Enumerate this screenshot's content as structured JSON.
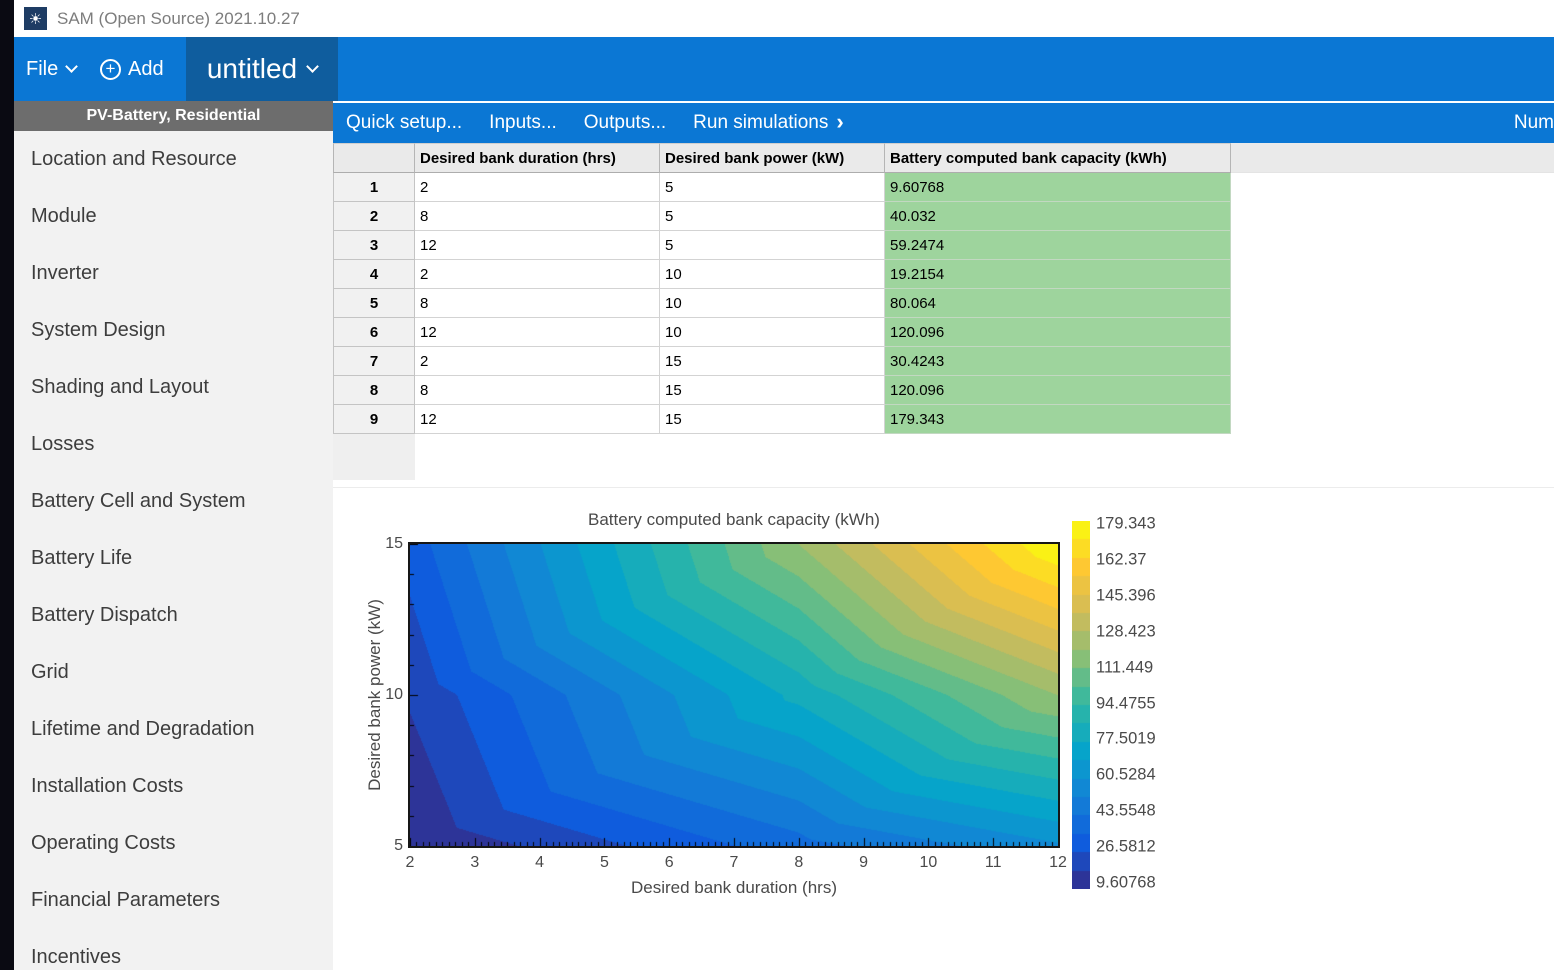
{
  "window": {
    "title": "SAM (Open Source) 2021.10.27",
    "app_icon": "sun-icon"
  },
  "menubar": {
    "file_label": "File",
    "add_label": "Add",
    "tab_label": "untitled"
  },
  "sidebar": {
    "header": "PV-Battery, Residential",
    "items": [
      "Location and Resource",
      "Module",
      "Inverter",
      "System Design",
      "Shading and Layout",
      "Losses",
      "Battery Cell and System",
      "Battery Life",
      "Battery Dispatch",
      "Grid",
      "Lifetime and Degradation",
      "Installation Costs",
      "Operating Costs",
      "Financial Parameters",
      "Incentives"
    ]
  },
  "toolbar": {
    "items": [
      {
        "label": "Quick setup..."
      },
      {
        "label": "Inputs..."
      },
      {
        "label": "Outputs..."
      },
      {
        "label": "Run simulations",
        "chevron": "›"
      }
    ],
    "truncated_right_label": "Num"
  },
  "table": {
    "columns": [
      "Desired bank duration (hrs)",
      "Desired bank power (kW)",
      "Battery computed bank capacity (kWh)"
    ],
    "rows": [
      {
        "n": "1",
        "duration": "2",
        "power": "5",
        "capacity": "9.60768"
      },
      {
        "n": "2",
        "duration": "8",
        "power": "5",
        "capacity": "40.032"
      },
      {
        "n": "3",
        "duration": "12",
        "power": "5",
        "capacity": "59.2474"
      },
      {
        "n": "4",
        "duration": "2",
        "power": "10",
        "capacity": "19.2154"
      },
      {
        "n": "5",
        "duration": "8",
        "power": "10",
        "capacity": "80.064"
      },
      {
        "n": "6",
        "duration": "12",
        "power": "10",
        "capacity": "120.096"
      },
      {
        "n": "7",
        "duration": "2",
        "power": "15",
        "capacity": "30.4243"
      },
      {
        "n": "8",
        "duration": "8",
        "power": "15",
        "capacity": "120.096"
      },
      {
        "n": "9",
        "duration": "12",
        "power": "15",
        "capacity": "179.343"
      }
    ]
  },
  "chart_data": {
    "type": "contour",
    "title": "Battery computed bank capacity (kWh)",
    "xlabel": "Desired bank duration (hrs)",
    "ylabel": "Desired bank power (kW)",
    "x": [
      2,
      8,
      12
    ],
    "y": [
      5,
      10,
      15
    ],
    "z": [
      [
        9.60768,
        40.032,
        59.2474
      ],
      [
        19.2154,
        80.064,
        120.096
      ],
      [
        30.4243,
        120.096,
        179.343
      ]
    ],
    "xlim": [
      2,
      12
    ],
    "ylim": [
      5,
      15
    ],
    "xticks": [
      "2",
      "3",
      "4",
      "5",
      "6",
      "7",
      "8",
      "9",
      "10",
      "11",
      "12"
    ],
    "yticks": [
      "5",
      "10",
      "15"
    ],
    "zmin": 9.60768,
    "zmax": 179.343,
    "levels": 20,
    "colormap": "parula",
    "grid": false,
    "legend_position": "colorbar-right",
    "colorbar_labels": [
      "179.343",
      "162.37",
      "145.396",
      "128.423",
      "111.449",
      "94.4755",
      "77.5019",
      "60.5284",
      "43.5548",
      "26.5812",
      "9.60768"
    ]
  },
  "colors": {
    "accent_blue": "#0b77d4",
    "tab_blue": "#0f5d9e",
    "sidebar_header_gray": "#6d6d6d",
    "capacity_cell_green": "#9ed49d",
    "app_icon_navy": "#1e3c64",
    "parula": [
      "#352a87",
      "#0f5cdd",
      "#1481d6",
      "#06a4ca",
      "#2eb7a4",
      "#87bf77",
      "#d1bb59",
      "#fec832",
      "#f9fb0e"
    ]
  }
}
